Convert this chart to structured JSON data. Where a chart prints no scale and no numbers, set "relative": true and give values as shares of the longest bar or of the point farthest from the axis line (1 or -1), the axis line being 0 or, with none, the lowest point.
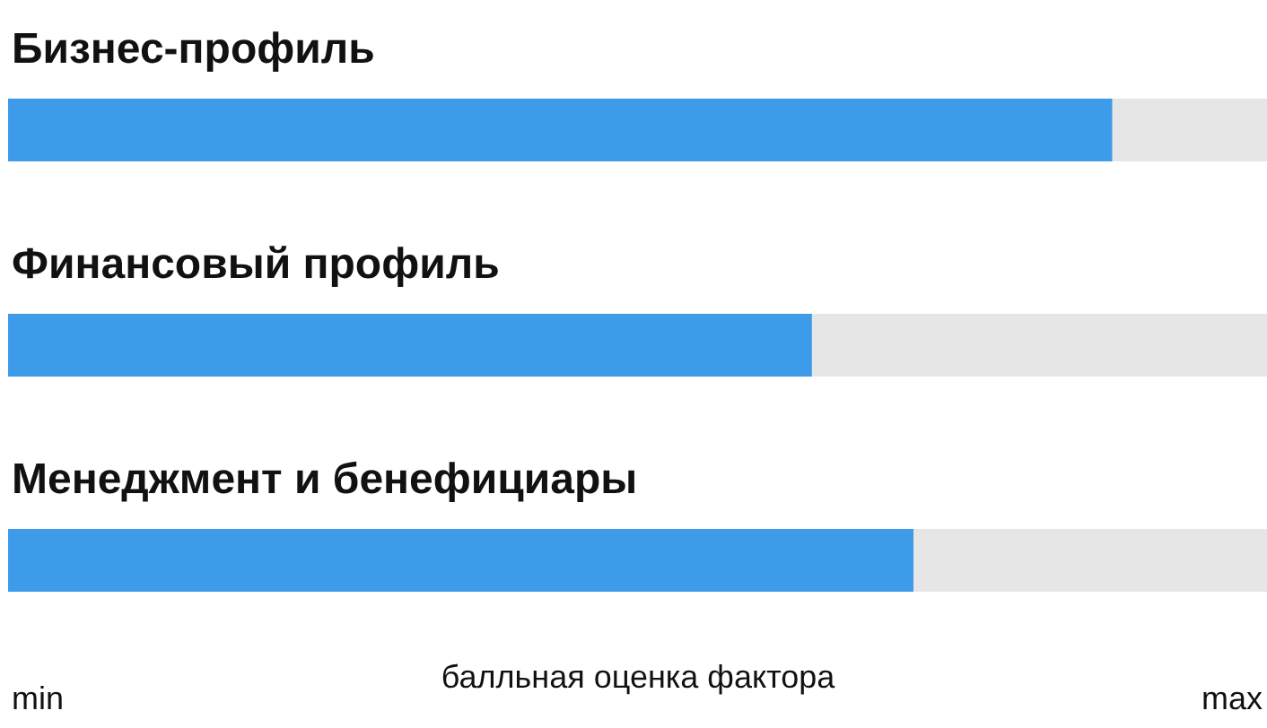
{
  "chart_data": {
    "type": "bar",
    "orientation": "horizontal",
    "relative": true,
    "categories": [
      "Бизнес-профиль",
      "Финансовый профиль",
      "Менеджмент и бенефициары"
    ],
    "values": [
      1,
      0.728,
      0.82
    ],
    "color": "#3d9be9",
    "annotations": [
      "min",
      "max"
    ],
    "xlabel": "балльная оценка фактора",
    "grid": false
  }
}
